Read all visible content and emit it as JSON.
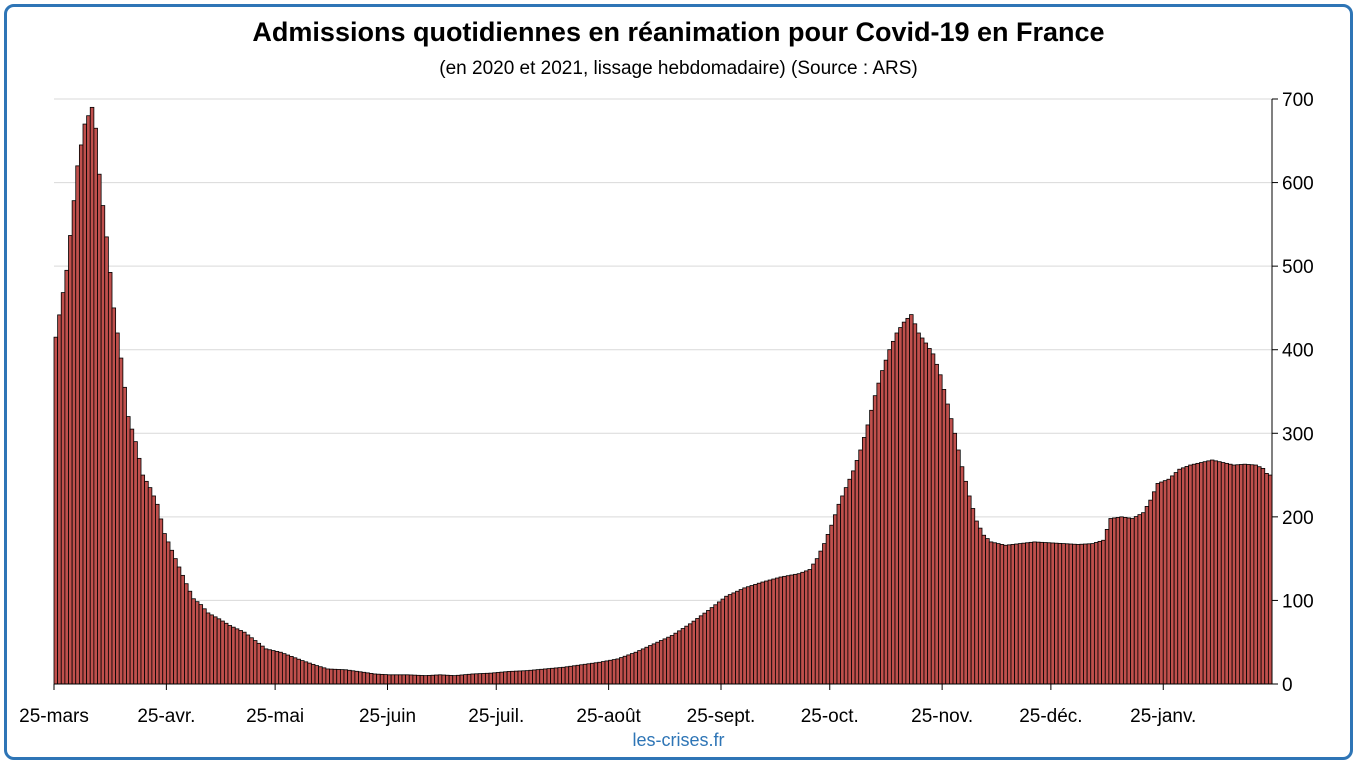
{
  "chart_data": {
    "type": "bar",
    "title": "Admissions quotidiennes en réanimation pour Covid-19 en France",
    "subtitle": "(en 2020 et 2021, lissage hebdomadaire) (Source : ARS)",
    "source": "les-crises.fr",
    "xlabel": "",
    "ylabel": "",
    "ylim": [
      0,
      700
    ],
    "yticks": [
      0,
      100,
      200,
      300,
      400,
      500,
      600,
      700
    ],
    "y_axis_side": "right",
    "grid": true,
    "x_tick_labels": [
      "25-mars",
      "25-avr.",
      "25-mai",
      "25-juin",
      "25-juil.",
      "25-août",
      "25-sept.",
      "25-oct.",
      "25-nov.",
      "25-déc.",
      "25-janv."
    ],
    "x_tick_day_offsets": [
      0,
      31,
      61,
      92,
      122,
      153,
      184,
      214,
      245,
      275,
      306
    ],
    "anchors": [
      [
        0,
        415
      ],
      [
        3,
        495
      ],
      [
        6,
        620
      ],
      [
        8,
        670
      ],
      [
        10,
        690
      ],
      [
        11,
        665
      ],
      [
        12,
        610
      ],
      [
        14,
        535
      ],
      [
        16,
        450
      ],
      [
        18,
        390
      ],
      [
        20,
        320
      ],
      [
        22,
        290
      ],
      [
        24,
        250
      ],
      [
        26,
        235
      ],
      [
        28,
        215
      ],
      [
        30,
        180
      ],
      [
        32,
        160
      ],
      [
        34,
        140
      ],
      [
        36,
        120
      ],
      [
        38,
        102
      ],
      [
        40,
        95
      ],
      [
        42,
        85
      ],
      [
        45,
        78
      ],
      [
        48,
        70
      ],
      [
        52,
        62
      ],
      [
        55,
        52
      ],
      [
        58,
        42
      ],
      [
        62,
        38
      ],
      [
        65,
        33
      ],
      [
        68,
        28
      ],
      [
        72,
        22
      ],
      [
        75,
        18
      ],
      [
        80,
        17
      ],
      [
        85,
        14
      ],
      [
        88,
        12
      ],
      [
        92,
        11
      ],
      [
        97,
        11
      ],
      [
        102,
        10
      ],
      [
        106,
        11
      ],
      [
        110,
        10
      ],
      [
        115,
        12
      ],
      [
        120,
        13
      ],
      [
        125,
        15
      ],
      [
        130,
        16
      ],
      [
        135,
        18
      ],
      [
        140,
        20
      ],
      [
        145,
        23
      ],
      [
        150,
        26
      ],
      [
        155,
        30
      ],
      [
        160,
        38
      ],
      [
        165,
        48
      ],
      [
        170,
        58
      ],
      [
        175,
        72
      ],
      [
        180,
        88
      ],
      [
        185,
        105
      ],
      [
        190,
        115
      ],
      [
        195,
        122
      ],
      [
        200,
        128
      ],
      [
        205,
        132
      ],
      [
        208,
        137
      ],
      [
        210,
        150
      ],
      [
        212,
        168
      ],
      [
        214,
        190
      ],
      [
        216,
        215
      ],
      [
        218,
        235
      ],
      [
        220,
        255
      ],
      [
        222,
        280
      ],
      [
        224,
        310
      ],
      [
        226,
        345
      ],
      [
        228,
        375
      ],
      [
        230,
        400
      ],
      [
        232,
        420
      ],
      [
        234,
        433
      ],
      [
        236,
        442
      ],
      [
        238,
        420
      ],
      [
        240,
        408
      ],
      [
        242,
        395
      ],
      [
        244,
        370
      ],
      [
        246,
        335
      ],
      [
        248,
        300
      ],
      [
        250,
        260
      ],
      [
        252,
        225
      ],
      [
        254,
        195
      ],
      [
        256,
        178
      ],
      [
        258,
        170
      ],
      [
        262,
        166
      ],
      [
        266,
        168
      ],
      [
        270,
        170
      ],
      [
        274,
        169
      ],
      [
        278,
        168
      ],
      [
        282,
        167
      ],
      [
        286,
        168
      ],
      [
        289,
        172
      ],
      [
        291,
        198
      ],
      [
        294,
        200
      ],
      [
        297,
        198
      ],
      [
        300,
        205
      ],
      [
        302,
        220
      ],
      [
        304,
        240
      ],
      [
        307,
        245
      ],
      [
        310,
        257
      ],
      [
        313,
        262
      ],
      [
        316,
        265
      ],
      [
        319,
        268
      ],
      [
        322,
        265
      ],
      [
        325,
        262
      ],
      [
        328,
        263
      ],
      [
        331,
        262
      ],
      [
        333,
        258
      ],
      [
        334,
        252
      ],
      [
        335,
        250
      ]
    ]
  }
}
